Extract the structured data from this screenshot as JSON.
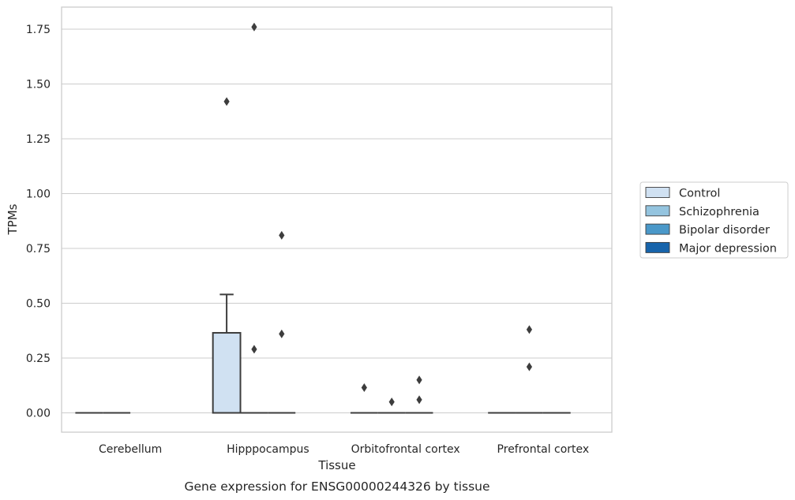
{
  "chart_data": {
    "type": "box",
    "xlabel": "Tissue",
    "ylabel": "TPMs",
    "caption": "Gene expression for ENSG00000244326 by tissue",
    "categories": [
      "Cerebellum",
      "Hipppocampus",
      "Orbitofrontal cortex",
      "Prefrontal cortex"
    ],
    "ylim": [
      -0.09,
      1.85
    ],
    "yticks": [
      0.0,
      0.25,
      0.5,
      0.75,
      1.0,
      1.25,
      1.5,
      1.75
    ],
    "ytick_labels": [
      "0.00",
      "0.25",
      "0.50",
      "0.75",
      "1.00",
      "1.25",
      "1.50",
      "1.75"
    ],
    "grid": "horizontal",
    "legend_position": "right",
    "series": [
      {
        "name": "Control",
        "color": "#d0e1f2"
      },
      {
        "name": "Schizophrenia",
        "color": "#94c4df"
      },
      {
        "name": "Bipolar disorder",
        "color": "#4a98c9"
      },
      {
        "name": "Major depression",
        "color": "#1764ab"
      }
    ],
    "groups": [
      {
        "category": "Cerebellum",
        "boxes": [
          {
            "series": "Control",
            "q1": 0,
            "median": 0,
            "q3": 0,
            "whisker_low": 0,
            "whisker_high": 0,
            "outliers": []
          },
          {
            "series": "Schizophrenia",
            "q1": 0,
            "median": 0,
            "q3": 0,
            "whisker_low": 0,
            "whisker_high": 0,
            "outliers": []
          }
        ]
      },
      {
        "category": "Hipppocampus",
        "boxes": [
          {
            "series": "Control",
            "q1": 0,
            "median": 0,
            "q3": 0.365,
            "whisker_low": 0,
            "whisker_high": 0.54,
            "outliers": [
              1.42
            ]
          },
          {
            "series": "Schizophrenia",
            "q1": 0,
            "median": 0,
            "q3": 0,
            "whisker_low": 0,
            "whisker_high": 0,
            "outliers": [
              0.29,
              1.76
            ]
          },
          {
            "series": "Bipolar disorder",
            "q1": 0,
            "median": 0,
            "q3": 0,
            "whisker_low": 0,
            "whisker_high": 0,
            "outliers": [
              0.36,
              0.81
            ]
          }
        ]
      },
      {
        "category": "Orbitofrontal cortex",
        "boxes": [
          {
            "series": "Control",
            "q1": 0,
            "median": 0,
            "q3": 0,
            "whisker_low": 0,
            "whisker_high": 0,
            "outliers": [
              0.115
            ]
          },
          {
            "series": "Schizophrenia",
            "q1": 0,
            "median": 0,
            "q3": 0,
            "whisker_low": 0,
            "whisker_high": 0,
            "outliers": [
              0.05
            ]
          },
          {
            "series": "Bipolar disorder",
            "q1": 0,
            "median": 0,
            "q3": 0,
            "whisker_low": 0,
            "whisker_high": 0,
            "outliers": [
              0.06,
              0.15
            ]
          }
        ]
      },
      {
        "category": "Prefrontal cortex",
        "boxes": [
          {
            "series": "Control",
            "q1": 0,
            "median": 0,
            "q3": 0,
            "whisker_low": 0,
            "whisker_high": 0,
            "outliers": []
          },
          {
            "series": "Schizophrenia",
            "q1": 0,
            "median": 0,
            "q3": 0,
            "whisker_low": 0,
            "whisker_high": 0,
            "outliers": [
              0.21,
              0.38
            ]
          },
          {
            "series": "Bipolar disorder",
            "q1": 0,
            "median": 0,
            "q3": 0,
            "whisker_low": 0,
            "whisker_high": 0,
            "outliers": []
          }
        ]
      }
    ]
  }
}
